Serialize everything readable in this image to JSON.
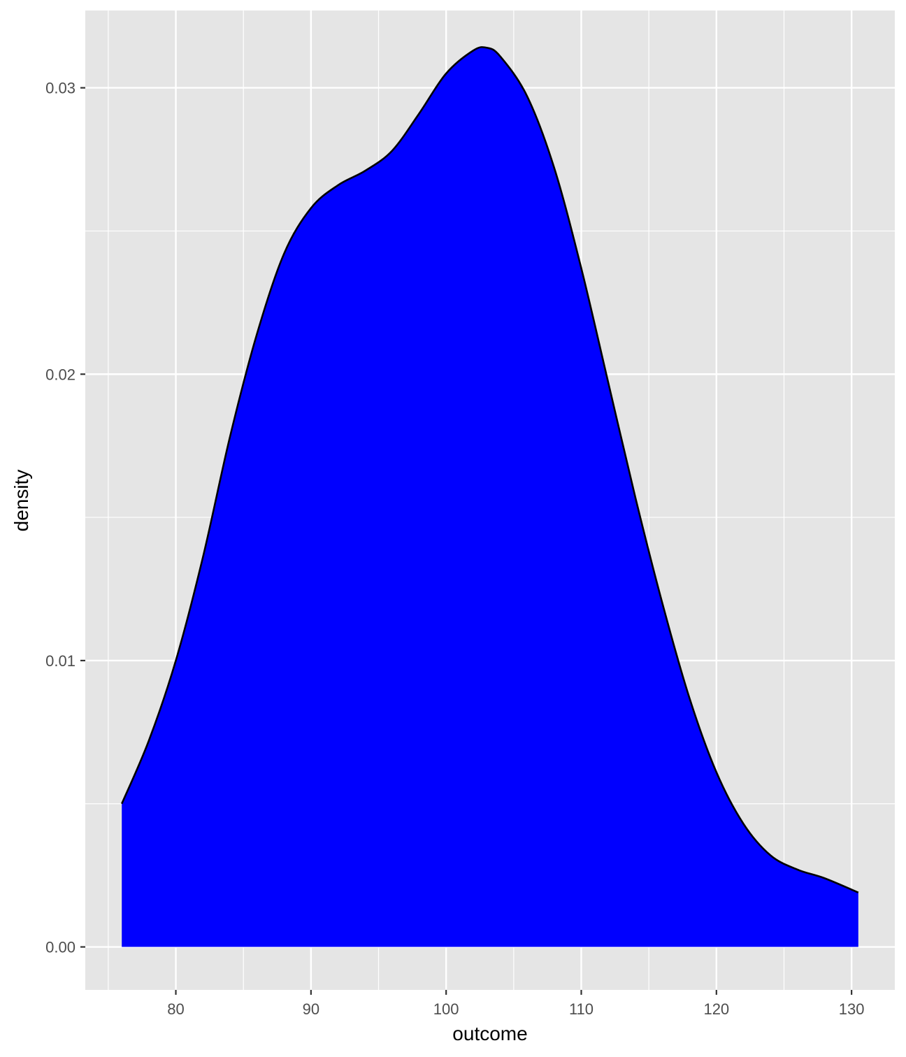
{
  "chart_data": {
    "type": "area",
    "subtype": "density",
    "xlabel": "outcome",
    "ylabel": "density",
    "xlim": [
      73.3,
      133.2
    ],
    "ylim": [
      -0.0015,
      0.0327
    ],
    "x_ticks": [
      80,
      90,
      100,
      110,
      120,
      130
    ],
    "y_ticks": [
      0.0,
      0.01,
      0.02,
      0.03
    ],
    "y_tick_labels": [
      "0.00",
      "0.01",
      "0.02",
      "0.03"
    ],
    "grid": true,
    "colors": {
      "panel_background": "#e5e5e5",
      "grid": "#ffffff",
      "fill": "#0000ff",
      "outline": "#000000",
      "tick": "#333333",
      "tick_label": "#4d4d4d"
    },
    "series": [
      {
        "x": [
          76.0,
          78.0,
          80.0,
          82.0,
          84.0,
          86.0,
          88.0,
          90.0,
          92.0,
          94.0,
          96.0,
          98.0,
          100.0,
          102.0,
          103.0,
          104.0,
          106.0,
          108.0,
          110.0,
          112.0,
          114.0,
          116.0,
          118.0,
          120.0,
          122.0,
          124.0,
          126.0,
          128.0,
          130.5
        ],
        "y": [
          0.005,
          0.0072,
          0.01,
          0.0136,
          0.0178,
          0.0214,
          0.0242,
          0.0258,
          0.0266,
          0.0271,
          0.0278,
          0.0291,
          0.0305,
          0.0313,
          0.0314,
          0.0311,
          0.0297,
          0.0272,
          0.0237,
          0.0197,
          0.0157,
          0.012,
          0.0087,
          0.0061,
          0.0043,
          0.0032,
          0.0027,
          0.0024,
          0.0019
        ]
      }
    ]
  }
}
